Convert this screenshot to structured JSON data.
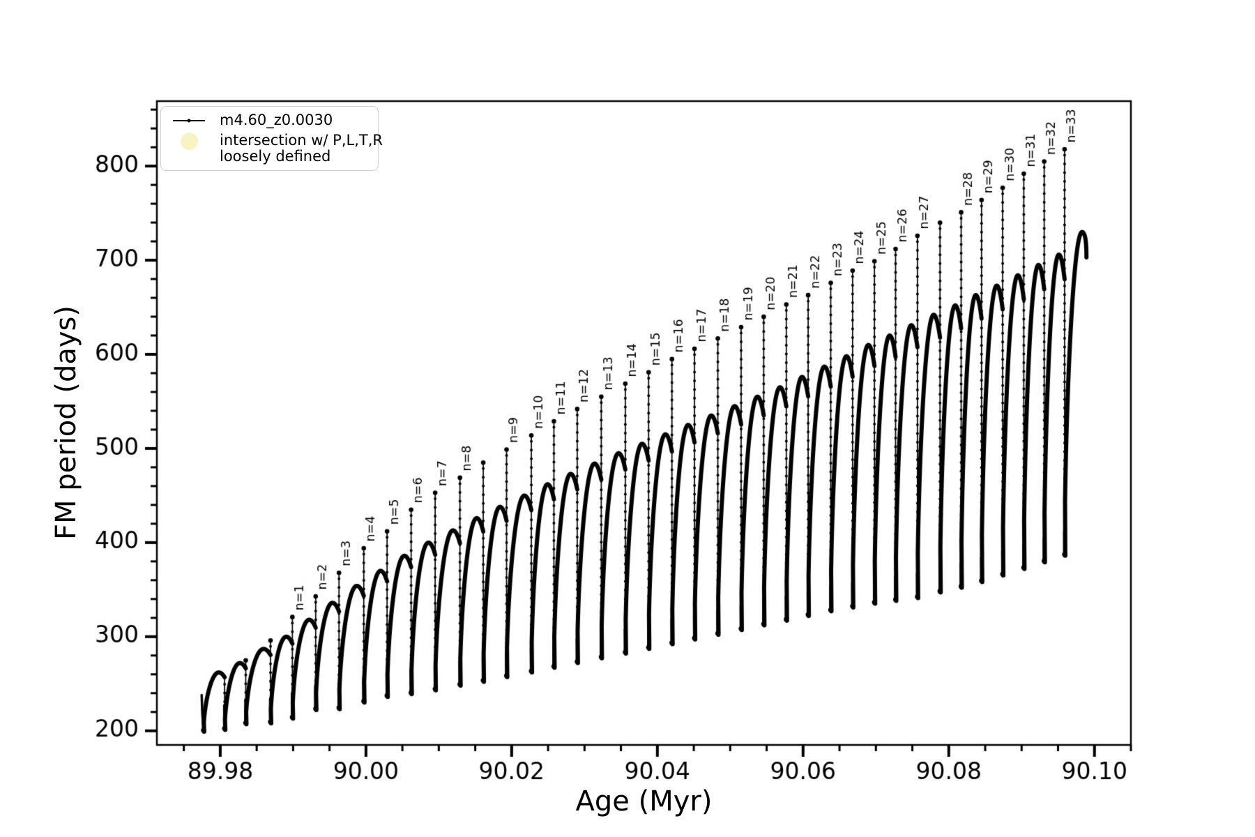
{
  "axes": {
    "xlabel": "Age (Myr)",
    "ylabel": "FM period (days)",
    "x_range": [
      89.9713,
      90.105
    ],
    "y_range": [
      185,
      869
    ],
    "x_ticks": {
      "values": [
        89.98,
        90.0,
        90.02,
        90.04,
        90.06,
        90.08,
        90.1
      ],
      "labels": [
        "89.98",
        "90.00",
        "90.02",
        "90.04",
        "90.06",
        "90.08",
        "90.10"
      ],
      "minor_step": 0.005
    },
    "y_ticks": {
      "values": [
        200,
        300,
        400,
        500,
        600,
        700,
        800
      ],
      "labels": [
        "200",
        "300",
        "400",
        "500",
        "600",
        "700",
        "800"
      ],
      "minor_step": 20
    },
    "spine_color": "#000000"
  },
  "legend": {
    "series_label": "m4.60_z0.0030",
    "intersection_label_line1": "intersection w/ P,L,T,R",
    "intersection_label_line2": "loosely defined",
    "intersection_color": "#f7f3c3",
    "line_color": "#000000"
  },
  "chart_data": {
    "type": "line",
    "series_name": "m4.60_z0.0030",
    "title": "",
    "xlabel": "Age (Myr)",
    "ylabel": "FM period (days)",
    "xlim": [
      89.9713,
      90.105
    ],
    "ylim": [
      185,
      869
    ],
    "grid": false,
    "legend_position": "upper left",
    "line_color": "#000000",
    "start_point": {
      "age": 89.97745,
      "period": 238
    },
    "tail": {
      "peak_age": 90.0983,
      "peak_period": 730,
      "end_age": 90.0989,
      "end_period": 703
    },
    "events": [
      {
        "label": null,
        "age": 89.9777,
        "spike": null,
        "dip": 199,
        "arch": null
      },
      {
        "label": null,
        "age": 89.9806,
        "spike": null,
        "dip": 201,
        "arch": 262
      },
      {
        "label": null,
        "age": 89.9835,
        "spike": 276,
        "dip": 207,
        "arch": 272
      },
      {
        "label": null,
        "age": 89.9869,
        "spike": 297,
        "dip": 208,
        "arch": 287
      },
      {
        "label": "n=1",
        "age": 89.9899,
        "spike": 322,
        "dip": 213,
        "arch": 300
      },
      {
        "label": "n=2",
        "age": 89.9931,
        "spike": 344,
        "dip": 222,
        "arch": 318
      },
      {
        "label": "n=3",
        "age": 89.9963,
        "spike": 369,
        "dip": 223,
        "arch": 336
      },
      {
        "label": "n=4",
        "age": 89.9997,
        "spike": 395,
        "dip": 230,
        "arch": 354
      },
      {
        "label": "n=5",
        "age": 90.0029,
        "spike": 413,
        "dip": 236,
        "arch": 370
      },
      {
        "label": "n=6",
        "age": 90.0062,
        "spike": 436,
        "dip": 239,
        "arch": 386
      },
      {
        "label": "n=7",
        "age": 90.0095,
        "spike": 454,
        "dip": 243,
        "arch": 400
      },
      {
        "label": "n=8",
        "age": 90.0129,
        "spike": 470,
        "dip": 248,
        "arch": 413
      },
      {
        "label": null,
        "age": 90.0161,
        "spike": 486,
        "dip": 252,
        "arch": 426
      },
      {
        "label": "n=9",
        "age": 90.0193,
        "spike": 500,
        "dip": 257,
        "arch": 438
      },
      {
        "label": "n=10",
        "age": 90.0227,
        "spike": 515,
        "dip": 262,
        "arch": 450
      },
      {
        "label": "n=11",
        "age": 90.0258,
        "spike": 530,
        "dip": 267,
        "arch": 462
      },
      {
        "label": "n=12",
        "age": 90.029,
        "spike": 543,
        "dip": 272,
        "arch": 473
      },
      {
        "label": "n=13",
        "age": 90.0323,
        "spike": 556,
        "dip": 277,
        "arch": 484
      },
      {
        "label": "n=14",
        "age": 90.0356,
        "spike": 570,
        "dip": 282,
        "arch": 495
      },
      {
        "label": "n=15",
        "age": 90.0388,
        "spike": 582,
        "dip": 287,
        "arch": 505
      },
      {
        "label": "n=16",
        "age": 90.042,
        "spike": 596,
        "dip": 292,
        "arch": 515
      },
      {
        "label": "n=17",
        "age": 90.0451,
        "spike": 607,
        "dip": 297,
        "arch": 525
      },
      {
        "label": "n=18",
        "age": 90.0483,
        "spike": 618,
        "dip": 302,
        "arch": 535
      },
      {
        "label": "n=19",
        "age": 90.0515,
        "spike": 630,
        "dip": 307,
        "arch": 545
      },
      {
        "label": "n=20",
        "age": 90.0546,
        "spike": 641,
        "dip": 312,
        "arch": 555
      },
      {
        "label": "n=21",
        "age": 90.0577,
        "spike": 654,
        "dip": 317,
        "arch": 565
      },
      {
        "label": "n=22",
        "age": 90.0607,
        "spike": 664,
        "dip": 322,
        "arch": 576
      },
      {
        "label": "n=23",
        "age": 90.0638,
        "spike": 677,
        "dip": 327,
        "arch": 587
      },
      {
        "label": "n=24",
        "age": 90.0668,
        "spike": 690,
        "dip": 331,
        "arch": 598
      },
      {
        "label": "n=25",
        "age": 90.0698,
        "spike": 700,
        "dip": 335,
        "arch": 610
      },
      {
        "label": "n=26",
        "age": 90.0727,
        "spike": 713,
        "dip": 338,
        "arch": 620
      },
      {
        "label": "n=27",
        "age": 90.0757,
        "spike": 727,
        "dip": 341,
        "arch": 631
      },
      {
        "label": null,
        "age": 90.0788,
        "spike": 741,
        "dip": 347,
        "arch": 642
      },
      {
        "label": "n=28",
        "age": 90.0817,
        "spike": 752,
        "dip": 352,
        "arch": 652
      },
      {
        "label": "n=29",
        "age": 90.0845,
        "spike": 765,
        "dip": 358,
        "arch": 663
      },
      {
        "label": "n=30",
        "age": 90.0874,
        "spike": 778,
        "dip": 365,
        "arch": 673
      },
      {
        "label": "n=31",
        "age": 90.0903,
        "spike": 793,
        "dip": 372,
        "arch": 684
      },
      {
        "label": "n=32",
        "age": 90.0931,
        "spike": 806,
        "dip": 379,
        "arch": 695
      },
      {
        "label": "n=33",
        "age": 90.0959,
        "spike": 819,
        "dip": 386,
        "arch": 706
      }
    ]
  }
}
